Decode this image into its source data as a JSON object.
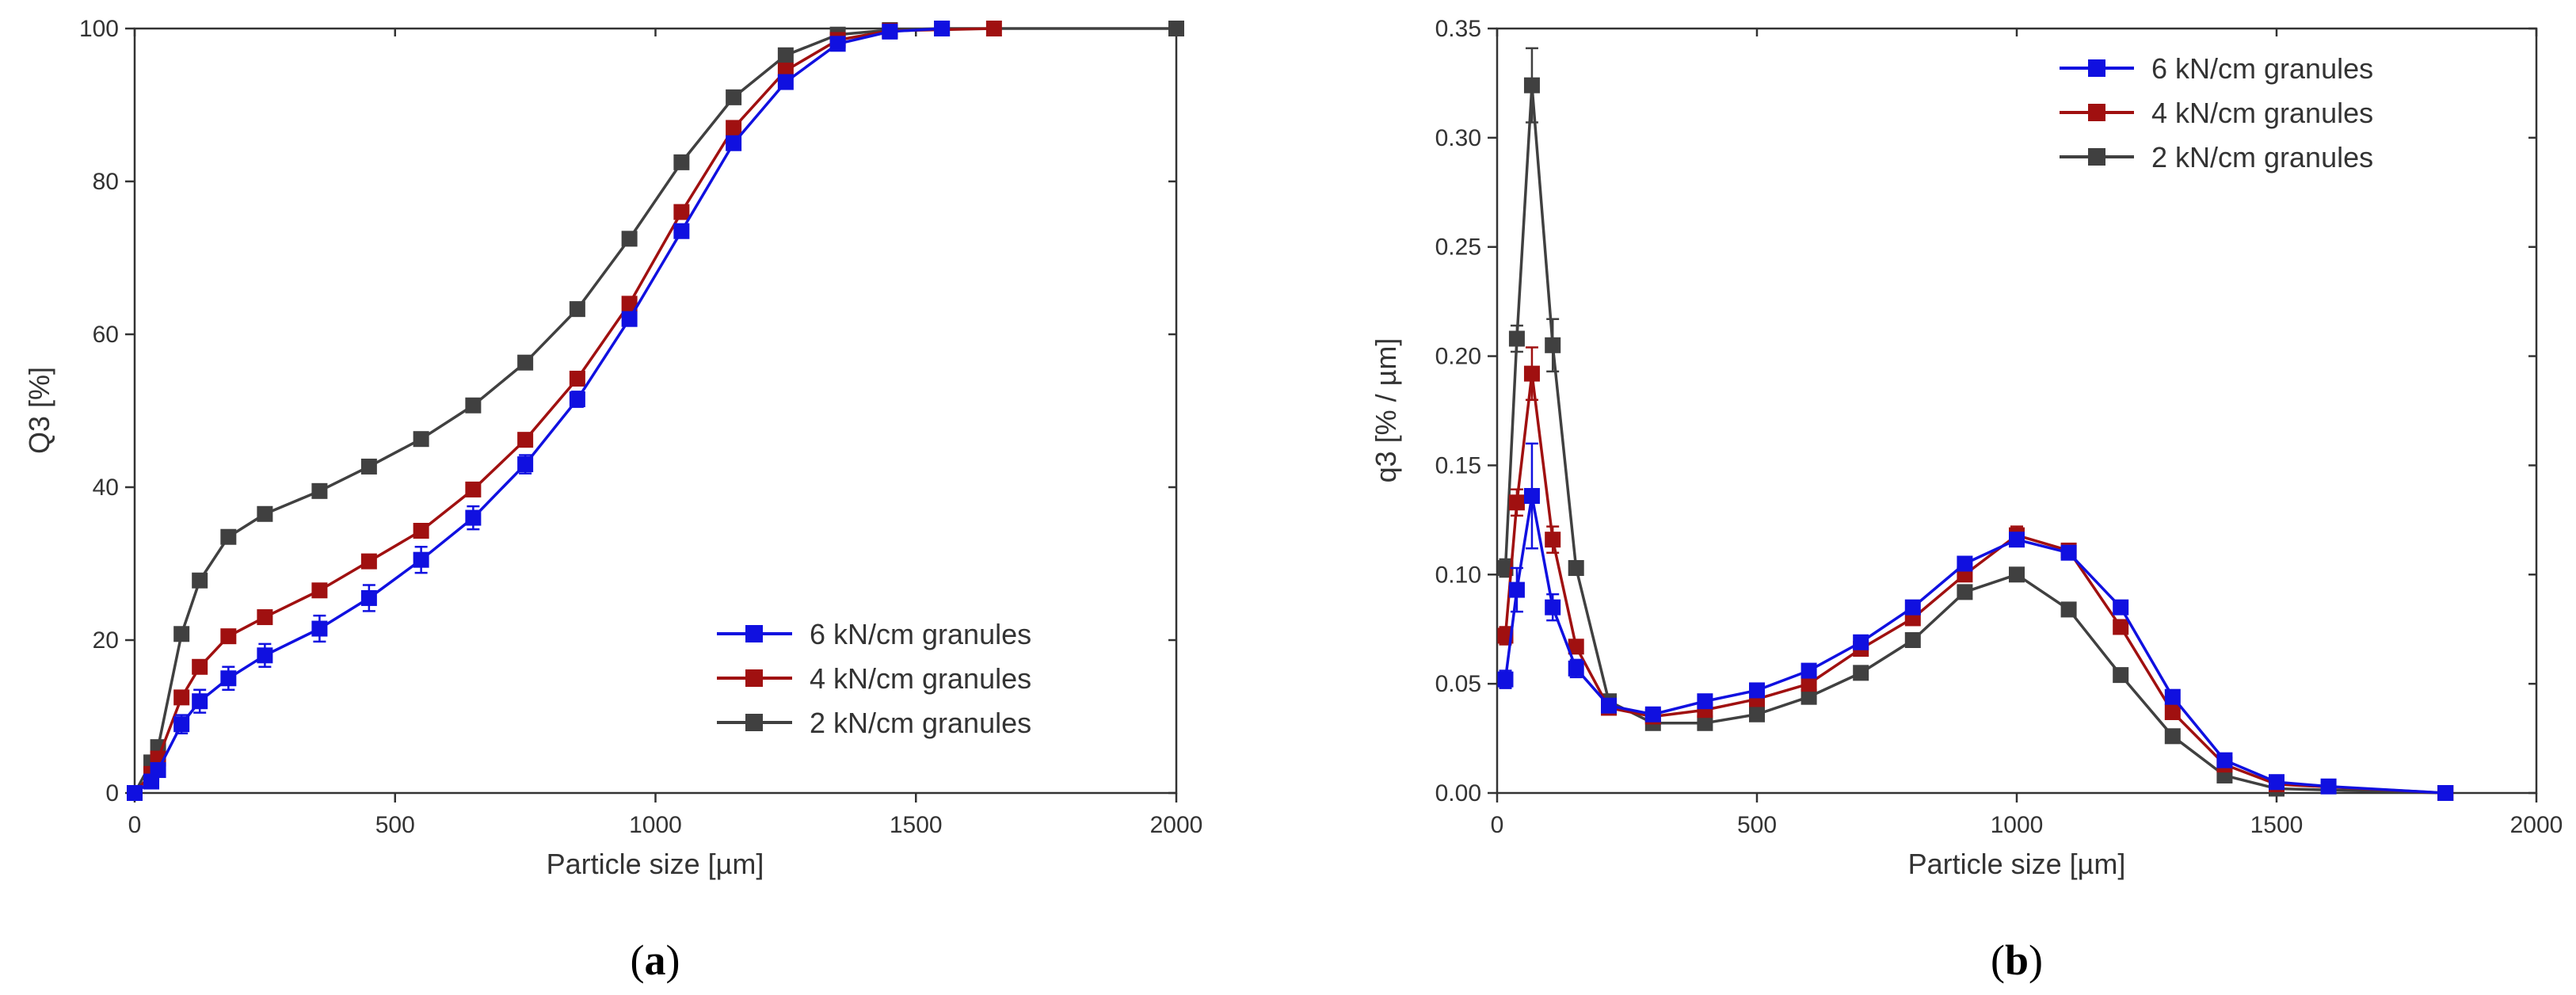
{
  "figure": {
    "panels": [
      {
        "label_prefix": "(",
        "label_letter": "a",
        "label_suffix": ")"
      },
      {
        "label_prefix": "(",
        "label_letter": "b",
        "label_suffix": ")"
      }
    ]
  },
  "colors": {
    "series_6kN": "#1010e0",
    "series_4kN": "#a01010",
    "series_2kN": "#404040",
    "axis": "#333333"
  },
  "chart_data": [
    {
      "type": "line",
      "panel": "a",
      "title": "",
      "xlabel": "Particle size [µm]",
      "ylabel": "Q3 [%]",
      "xlim": [
        0,
        2000
      ],
      "ylim": [
        0,
        100
      ],
      "xticks": [
        0,
        500,
        1000,
        1500,
        2000
      ],
      "yticks": [
        0,
        20,
        40,
        60,
        80,
        100
      ],
      "xtick_labels": [
        "0",
        "500",
        "1000",
        "1500",
        "2000"
      ],
      "ytick_labels": [
        "0",
        "20",
        "40",
        "60",
        "80",
        "100"
      ],
      "legend_position": "lower-right",
      "series": [
        {
          "name": "6 kN/cm granules",
          "color_key": "series_6kN",
          "x": [
            0,
            32,
            45,
            90,
            125,
            180,
            250,
            355,
            450,
            550,
            650,
            750,
            850,
            950,
            1050,
            1150,
            1250,
            1350,
            1450,
            1550
          ],
          "y": [
            0,
            1.5,
            3,
            9,
            12,
            15,
            18,
            21.5,
            25.5,
            30.5,
            36,
            43,
            51.5,
            62,
            73.5,
            85,
            93,
            98,
            99.6,
            100
          ],
          "err": [
            0,
            0.5,
            0.5,
            1.2,
            1.5,
            1.5,
            1.5,
            1.7,
            1.7,
            1.7,
            1.5,
            1.2,
            1.0,
            0.8,
            0.8,
            0.6,
            0.5,
            0.3,
            0.1,
            0
          ]
        },
        {
          "name": "4 kN/cm granules",
          "color_key": "series_4kN",
          "x": [
            0,
            32,
            45,
            90,
            125,
            180,
            250,
            355,
            450,
            550,
            650,
            750,
            850,
            950,
            1050,
            1150,
            1250,
            1350,
            1450,
            1650
          ],
          "y": [
            0,
            2.5,
            4.5,
            12.5,
            16.5,
            20.5,
            23,
            26.5,
            30.3,
            34.3,
            39.7,
            46.2,
            54.2,
            64,
            76,
            87,
            94.5,
            98.5,
            99.7,
            100
          ],
          "err": [
            0,
            0.4,
            0.5,
            0.6,
            0.6,
            0.6,
            0.5,
            0.5,
            0.5,
            0.5,
            0.5,
            0.5,
            0.5,
            0.5,
            0.5,
            0.4,
            0.3,
            0.2,
            0.1,
            0
          ]
        },
        {
          "name": "2 kN/cm granules",
          "color_key": "series_2kN",
          "x": [
            0,
            32,
            45,
            90,
            125,
            180,
            250,
            355,
            450,
            550,
            650,
            750,
            850,
            950,
            1050,
            1150,
            1250,
            1350,
            1450,
            1550,
            2000
          ],
          "y": [
            0,
            4,
            6,
            20.8,
            27.8,
            33.5,
            36.5,
            39.5,
            42.7,
            46.3,
            50.7,
            56.3,
            63.3,
            72.5,
            82.5,
            91,
            96.5,
            99.2,
            99.8,
            100,
            100
          ],
          "err": [
            0,
            0.3,
            0.3,
            0.3,
            0.3,
            0.3,
            0.3,
            0.3,
            0.3,
            0.3,
            0.3,
            0.3,
            0.3,
            0.3,
            0.3,
            0.2,
            0.2,
            0.1,
            0.1,
            0,
            0
          ]
        }
      ]
    },
    {
      "type": "line",
      "panel": "b",
      "title": "",
      "xlabel": "Particle size [µm]",
      "ylabel": "q3 [% / µm]",
      "xlim": [
        0,
        2000
      ],
      "ylim": [
        0,
        0.35
      ],
      "xticks": [
        0,
        500,
        1000,
        1500,
        2000
      ],
      "yticks": [
        0,
        0.05,
        0.1,
        0.15,
        0.2,
        0.25,
        0.3,
        0.35
      ],
      "xtick_labels": [
        "0",
        "500",
        "1000",
        "1500",
        "2000"
      ],
      "ytick_labels": [
        "0.00",
        "0.05",
        "0.10",
        "0.15",
        "0.20",
        "0.25",
        "0.30",
        "0.35"
      ],
      "legend_position": "top-right",
      "series": [
        {
          "name": "6 kN/cm granules",
          "color_key": "series_6kN",
          "x": [
            16,
            38,
            67,
            107,
            152,
            215,
            300,
            400,
            500,
            600,
            700,
            800,
            900,
            1000,
            1100,
            1200,
            1300,
            1400,
            1500,
            1600,
            1825
          ],
          "y": [
            0.052,
            0.093,
            0.136,
            0.085,
            0.057,
            0.04,
            0.036,
            0.042,
            0.047,
            0.056,
            0.069,
            0.085,
            0.105,
            0.116,
            0.11,
            0.085,
            0.044,
            0.015,
            0.005,
            0.003,
            0.0
          ],
          "err": [
            0.004,
            0.01,
            0.024,
            0.006,
            0.004,
            0.002,
            0.002,
            0.002,
            0.002,
            0.002,
            0.002,
            0.002,
            0.002,
            0.002,
            0.002,
            0.002,
            0.002,
            0.001,
            0.001,
            0.001,
            0
          ]
        },
        {
          "name": "4 kN/cm granules",
          "color_key": "series_4kN",
          "x": [
            16,
            38,
            67,
            107,
            152,
            215,
            300,
            400,
            500,
            600,
            700,
            800,
            900,
            1000,
            1100,
            1200,
            1300,
            1400,
            1500,
            1825
          ],
          "y": [
            0.072,
            0.133,
            0.192,
            0.116,
            0.067,
            0.039,
            0.035,
            0.038,
            0.043,
            0.05,
            0.066,
            0.08,
            0.1,
            0.118,
            0.111,
            0.076,
            0.037,
            0.013,
            0.004,
            0.0
          ],
          "err": [
            0.004,
            0.006,
            0.012,
            0.006,
            0.003,
            0.002,
            0.002,
            0.002,
            0.002,
            0.002,
            0.002,
            0.002,
            0.002,
            0.004,
            0.003,
            0.002,
            0.002,
            0.001,
            0.001,
            0
          ]
        },
        {
          "name": "2 kN/cm granules",
          "color_key": "series_2kN",
          "x": [
            16,
            38,
            67,
            107,
            152,
            215,
            300,
            400,
            500,
            600,
            700,
            800,
            900,
            1000,
            1100,
            1200,
            1300,
            1400,
            1500,
            1825
          ],
          "y": [
            0.103,
            0.208,
            0.324,
            0.205,
            0.103,
            0.042,
            0.032,
            0.032,
            0.036,
            0.044,
            0.055,
            0.07,
            0.092,
            0.1,
            0.084,
            0.054,
            0.026,
            0.008,
            0.002,
            0.0
          ],
          "err": [
            0.004,
            0.006,
            0.017,
            0.012,
            0.003,
            0.002,
            0.002,
            0.002,
            0.002,
            0.002,
            0.002,
            0.002,
            0.002,
            0.002,
            0.002,
            0.002,
            0.001,
            0.001,
            0.001,
            0
          ]
        }
      ]
    }
  ]
}
